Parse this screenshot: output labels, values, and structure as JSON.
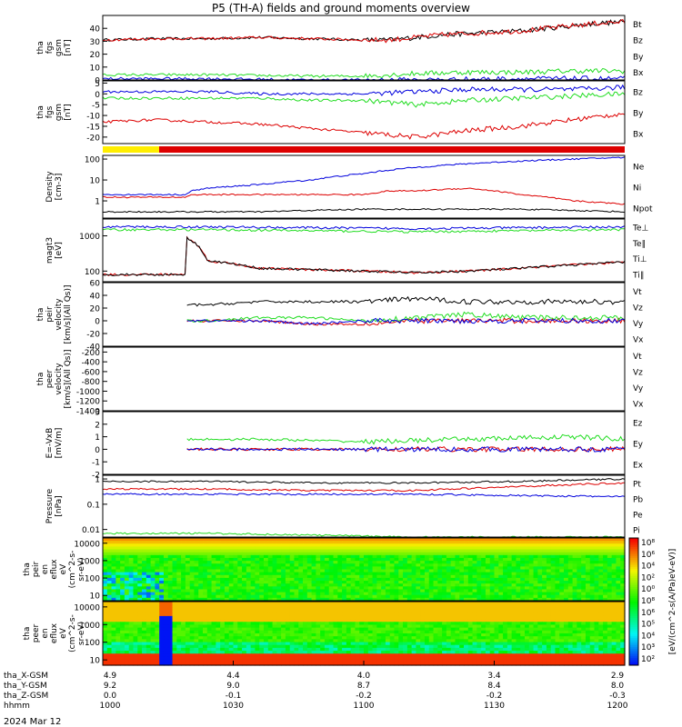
{
  "title": "P5 (TH-A) fields and ground moments overview",
  "bottom_date": "2024 Mar 12",
  "colors": {
    "black": "#000000",
    "red": "#dd0000",
    "green": "#22dd22",
    "blue": "#0000dd",
    "yellow": "#ffee00"
  },
  "chart_data": [
    {
      "id": "p1",
      "type": "line",
      "ylabel": [
        "tha",
        "fgs",
        "gsm",
        "[nT]"
      ],
      "ylim": [
        0,
        50
      ],
      "yticks": [
        0,
        10,
        20,
        30,
        40
      ],
      "series": [
        {
          "name": "Bt",
          "color": "#000000",
          "x": [
            0,
            0.1,
            0.2,
            0.3,
            0.4,
            0.5,
            0.55,
            0.6,
            0.65,
            0.7,
            0.75,
            0.8,
            0.85,
            0.9,
            0.95,
            1.0
          ],
          "y": [
            31,
            32,
            32,
            33,
            32,
            31,
            31,
            33,
            35,
            36,
            37,
            38,
            40,
            42,
            44,
            45
          ]
        },
        {
          "name": "Bz",
          "color": "#dd0000",
          "x": [
            0,
            0.1,
            0.2,
            0.3,
            0.4,
            0.5,
            0.55,
            0.6,
            0.65,
            0.7,
            0.75,
            0.8,
            0.85,
            0.9,
            0.95,
            1.0
          ],
          "y": [
            31,
            32,
            32,
            33,
            32,
            31,
            31,
            33,
            35,
            36,
            37,
            38,
            40,
            42,
            44,
            45
          ]
        },
        {
          "name": "By",
          "color": "#22dd22",
          "x": [
            0,
            0.2,
            0.4,
            0.5,
            0.6,
            0.7,
            0.8,
            0.9,
            1.0
          ],
          "y": [
            4,
            4,
            3,
            3,
            5,
            6,
            6,
            7,
            7
          ]
        },
        {
          "name": "Bx",
          "color": "#0000dd",
          "x": [
            0,
            0.2,
            0.4,
            0.6,
            0.8,
            1.0
          ],
          "y": [
            1,
            1,
            0,
            0,
            1,
            1
          ]
        }
      ]
    },
    {
      "id": "p2",
      "type": "line",
      "ylabel": [
        "tha",
        "fgs",
        "gsm",
        "[nT]"
      ],
      "ylim": [
        -23,
        6
      ],
      "yticks": [
        5,
        0,
        -5,
        -10,
        -15,
        -20
      ],
      "series": [
        {
          "name": "Bz",
          "color": "#dd0000",
          "x": [
            0,
            0.1,
            0.2,
            0.3,
            0.4,
            0.5,
            0.6,
            0.7,
            0.8,
            0.9,
            1.0
          ],
          "y": [
            -13,
            -12,
            -13,
            -14,
            -16,
            -18,
            -20,
            -17,
            -15,
            -12,
            -9
          ]
        },
        {
          "name": "By",
          "color": "#22dd22",
          "x": [
            0,
            0.1,
            0.2,
            0.3,
            0.4,
            0.5,
            0.6,
            0.7,
            0.8,
            0.9,
            1.0
          ],
          "y": [
            -2,
            -2,
            -2,
            -2,
            -3,
            -3,
            -5,
            -3,
            -2,
            -1,
            0
          ]
        },
        {
          "name": "Bx",
          "color": "#0000dd",
          "x": [
            0,
            0.1,
            0.2,
            0.3,
            0.4,
            0.5,
            0.6,
            0.7,
            0.8,
            0.9,
            1.0
          ],
          "y": [
            1,
            1,
            1,
            0,
            0,
            0,
            1,
            2,
            2,
            2,
            3
          ]
        }
      ]
    },
    {
      "id": "p4",
      "type": "line",
      "scale": "log",
      "ylabel": [
        "Density",
        "[cm-3]"
      ],
      "ylim": [
        0.15,
        150
      ],
      "yticks": [
        1,
        10,
        100
      ],
      "series": [
        {
          "name": "Ne",
          "color": "#0000dd",
          "x": [
            0,
            0.1,
            0.16,
            0.17,
            0.2,
            0.3,
            0.4,
            0.5,
            0.6,
            0.7,
            0.8,
            0.9,
            1.0
          ],
          "y": [
            2,
            2,
            2,
            3,
            4,
            6,
            10,
            20,
            40,
            60,
            80,
            100,
            120
          ]
        },
        {
          "name": "Ni",
          "color": "#000000",
          "x": [
            0,
            0.1,
            0.16,
            0.2,
            0.3,
            0.4,
            0.5,
            0.6,
            0.7,
            0.8,
            0.9,
            1.0
          ],
          "y": [
            0.3,
            0.3,
            0.3,
            0.3,
            0.3,
            0.35,
            0.4,
            0.4,
            0.4,
            0.4,
            0.35,
            0.3
          ]
        },
        {
          "name": "Npot",
          "color": "#dd0000",
          "x": [
            0,
            0.1,
            0.16,
            0.17,
            0.2,
            0.3,
            0.4,
            0.5,
            0.55,
            0.6,
            0.7,
            0.8,
            0.9,
            1.0
          ],
          "y": [
            1.5,
            1.5,
            1.5,
            2,
            2,
            2,
            2,
            2,
            3,
            3,
            4,
            2,
            1,
            0.7
          ]
        }
      ]
    },
    {
      "id": "p5",
      "type": "line",
      "scale": "log",
      "ylabel": [
        "magt3",
        "[eV]"
      ],
      "ylim": [
        50,
        3000
      ],
      "yticks": [
        100,
        1000
      ],
      "series": [
        {
          "name": "Te⊥",
          "color": "#dd0000",
          "x": [
            0,
            0.1,
            0.16,
            0.161,
            0.2,
            0.3,
            0.4,
            0.5,
            0.6,
            0.7,
            0.8,
            0.9,
            1.0
          ],
          "y": [
            80,
            80,
            80,
            900,
            200,
            120,
            110,
            100,
            90,
            100,
            120,
            150,
            180
          ]
        },
        {
          "name": "Te∥",
          "color": "#000000",
          "x": [
            0,
            0.1,
            0.16,
            0.161,
            0.2,
            0.3,
            0.4,
            0.5,
            0.6,
            0.7,
            0.8,
            0.9,
            1.0
          ],
          "y": [
            80,
            80,
            80,
            900,
            200,
            120,
            110,
            100,
            90,
            100,
            120,
            150,
            180
          ]
        },
        {
          "name": "Ti⊥",
          "color": "#0000dd",
          "x": [
            0,
            0.2,
            0.4,
            0.6,
            0.8,
            1.0
          ],
          "y": [
            1800,
            1800,
            1700,
            1600,
            1700,
            1800
          ]
        },
        {
          "name": "Ti∥",
          "color": "#22dd22",
          "x": [
            0,
            0.2,
            0.4,
            0.6,
            0.8,
            1.0
          ],
          "y": [
            1500,
            1500,
            1400,
            1300,
            1400,
            1500
          ]
        }
      ]
    },
    {
      "id": "p6",
      "type": "line",
      "ylabel": [
        "tha",
        "peir",
        "velocity",
        "[km/s](All Qs)]"
      ],
      "ylim": [
        -40,
        60
      ],
      "yticks": [
        60,
        40,
        20,
        0,
        -20,
        -40
      ],
      "series": [
        {
          "name": "Vt",
          "color": "#000000",
          "x": [
            0.16,
            0.2,
            0.3,
            0.4,
            0.5,
            0.6,
            0.7,
            0.8,
            0.9,
            1.0
          ],
          "y": [
            25,
            25,
            30,
            30,
            30,
            35,
            30,
            30,
            30,
            30
          ]
        },
        {
          "name": "Vz",
          "color": "#dd0000",
          "x": [
            0.16,
            0.2,
            0.3,
            0.4,
            0.5,
            0.6,
            0.7,
            0.8,
            0.9,
            1.0
          ],
          "y": [
            0,
            0,
            0,
            -5,
            -5,
            0,
            0,
            0,
            0,
            0
          ]
        },
        {
          "name": "Vy",
          "color": "#22dd22",
          "x": [
            0.16,
            0.2,
            0.3,
            0.4,
            0.5,
            0.6,
            0.7,
            0.8,
            0.9,
            1.0
          ],
          "y": [
            0,
            0,
            5,
            5,
            0,
            5,
            10,
            5,
            5,
            5
          ]
        },
        {
          "name": "Vx",
          "color": "#0000dd",
          "x": [
            0.16,
            0.2,
            0.3,
            0.4,
            0.5,
            0.6,
            0.7,
            0.8,
            0.9,
            1.0
          ],
          "y": [
            0,
            0,
            0,
            -5,
            0,
            0,
            0,
            0,
            0,
            0
          ]
        }
      ]
    },
    {
      "id": "p7",
      "type": "line",
      "ylabel": [
        "tha",
        "peer",
        "velocity",
        "[km/s](All Qs)]"
      ],
      "ylim": [
        -1400,
        -100
      ],
      "yticks": [
        -200,
        -400,
        -600,
        -800,
        -1000,
        -1200,
        -1400
      ],
      "series": [
        {
          "name": "Vt",
          "color": "#000000",
          "x": [],
          "y": []
        },
        {
          "name": "Vz",
          "color": "#dd0000",
          "x": [],
          "y": []
        },
        {
          "name": "Vy",
          "color": "#22dd22",
          "x": [],
          "y": []
        },
        {
          "name": "Vx",
          "color": "#0000dd",
          "x": [],
          "y": []
        }
      ]
    },
    {
      "id": "p8",
      "type": "line",
      "ylabel": [
        "E=-VxB",
        "[mV/m]"
      ],
      "ylim": [
        -2,
        3
      ],
      "yticks": [
        3,
        2,
        1,
        0,
        -1,
        -2
      ],
      "series": [
        {
          "name": "Ez",
          "color": "#dd0000",
          "x": [
            0.16,
            0.3,
            0.5,
            0.7,
            0.9,
            1.0
          ],
          "y": [
            0,
            0,
            0,
            0,
            0,
            0
          ]
        },
        {
          "name": "Ey",
          "color": "#22dd22",
          "x": [
            0.16,
            0.3,
            0.5,
            0.7,
            0.9,
            1.0
          ],
          "y": [
            0.8,
            0.8,
            0.6,
            0.8,
            1.0,
            0.8
          ]
        },
        {
          "name": "Ex",
          "color": "#0000dd",
          "x": [
            0.16,
            0.3,
            0.5,
            0.7,
            0.9,
            1.0
          ],
          "y": [
            0,
            0,
            0,
            0,
            0,
            0
          ]
        }
      ]
    },
    {
      "id": "p9",
      "type": "line",
      "scale": "log",
      "ylabel": [
        "Pressure",
        "[nPa]"
      ],
      "ylim": [
        0.005,
        1.4
      ],
      "yticks": [
        0.01,
        0.1,
        1
      ],
      "series": [
        {
          "name": "Pt",
          "color": "#000000",
          "x": [
            0,
            0.2,
            0.4,
            0.6,
            0.8,
            1.0
          ],
          "y": [
            0.8,
            0.8,
            0.7,
            0.7,
            0.8,
            1.0
          ]
        },
        {
          "name": "Pb",
          "color": "#dd0000",
          "x": [
            0,
            0.2,
            0.4,
            0.6,
            0.8,
            1.0
          ],
          "y": [
            0.4,
            0.4,
            0.35,
            0.35,
            0.5,
            0.7
          ]
        },
        {
          "name": "Pe",
          "color": "#22dd22",
          "x": [
            0,
            0.2,
            0.4,
            0.6,
            0.8,
            1.0
          ],
          "y": [
            0.007,
            0.007,
            0.006,
            0.005,
            0.005,
            0.005
          ]
        },
        {
          "name": "Pi",
          "color": "#0000dd",
          "x": [
            0,
            0.2,
            0.4,
            0.6,
            0.8,
            1.0
          ],
          "y": [
            0.25,
            0.25,
            0.25,
            0.25,
            0.22,
            0.2
          ]
        }
      ]
    },
    {
      "id": "p10",
      "type": "heatmap",
      "scale": "log",
      "ylabel": [
        "tha",
        "peir",
        "en",
        "eflux",
        "eV",
        "(cm^2-s-",
        "sr-eV)"
      ],
      "ylim": [
        5,
        20000
      ],
      "yticks": [
        10,
        100,
        1000,
        10000
      ]
    },
    {
      "id": "p11",
      "type": "heatmap",
      "scale": "log",
      "ylabel": [
        "tha",
        "peer",
        "en",
        "eflux",
        "eV",
        "(cm^2-s-",
        "sr-eV)"
      ],
      "ylim": [
        5,
        20000
      ],
      "yticks": [
        10,
        100,
        1000,
        10000
      ]
    }
  ],
  "legends": {
    "p1": [
      "Bt",
      "Bz",
      "By",
      "Bx"
    ],
    "p2": [
      "Bz",
      "By",
      "Bx"
    ],
    "p4": [
      "Ne",
      "Ni",
      "Npot"
    ],
    "p5": [
      "Te⊥",
      "Te∥",
      "Ti⊥",
      "Ti∥"
    ],
    "p6": [
      "Vt",
      "Vz",
      "Vy",
      "Vx"
    ],
    "p7": [
      "Vt",
      "Vz",
      "Vy",
      "Vx"
    ],
    "p8": [
      "Ez",
      "Ey",
      "Ex"
    ],
    "p9": [
      "Pt",
      "Pb",
      "Pe",
      "Pi"
    ]
  },
  "colorbar": {
    "label": "[eV/(cm^2-s(A/Pa)eV-eV)]",
    "ticks": [
      "10⁸",
      "10⁶",
      "10⁴",
      "10²",
      "10⁰",
      "10⁸",
      "10⁶",
      "10⁵",
      "10⁴",
      "10³",
      "10²"
    ]
  },
  "xaxis": {
    "rows": [
      {
        "label": "tha_X-GSM",
        "values": [
          "4.9",
          "4.4",
          "4.0",
          "3.4",
          "2.9"
        ]
      },
      {
        "label": "tha_Y-GSM",
        "values": [
          "9.2",
          "9.0",
          "8.7",
          "8.4",
          "8.0"
        ]
      },
      {
        "label": "tha_Z-GSM",
        "values": [
          "0.0",
          "-0.1",
          "-0.2",
          "-0.2",
          "-0.3"
        ]
      },
      {
        "label": "hhmm",
        "values": [
          "1000",
          "1030",
          "1100",
          "1130",
          "1200"
        ]
      }
    ]
  }
}
